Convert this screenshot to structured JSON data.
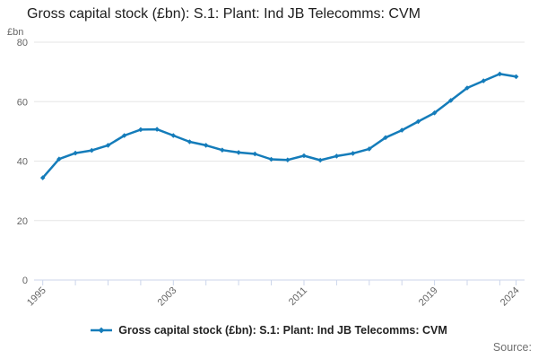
{
  "title": "Gross capital stock (£bn): S.1: Plant: Ind JB Telecomms: CVM",
  "y_axis_unit_label": "£bn",
  "legend": {
    "label": "Gross capital stock (£bn): S.1: Plant: Ind JB Telecomms: CVM"
  },
  "source_label": "Source:",
  "colors": {
    "line": "#147cba",
    "grid": "#e6e6e6",
    "axis": "#ccd6eb",
    "tick_label": "#666666",
    "title_text": "#202020",
    "legend_text": "#222222",
    "source_text": "#707070"
  },
  "chart_data": {
    "type": "line",
    "title": "Gross capital stock (£bn): S.1: Plant: Ind JB Telecomms: CVM",
    "xlabel": "",
    "ylabel": "£bn",
    "ylim": [
      0,
      80
    ],
    "yticks": [
      0,
      20,
      40,
      60,
      80
    ],
    "x": [
      1995,
      1996,
      1997,
      1998,
      1999,
      2000,
      2001,
      2002,
      2003,
      2004,
      2005,
      2006,
      2007,
      2008,
      2009,
      2010,
      2011,
      2012,
      2013,
      2014,
      2015,
      2016,
      2017,
      2018,
      2019,
      2020,
      2021,
      2022,
      2023,
      2024
    ],
    "series": [
      {
        "name": "Gross capital stock (£bn): S.1: Plant: Ind JB Telecomms: CVM",
        "values": [
          34.4,
          40.7,
          42.7,
          43.6,
          45.3,
          48.6,
          50.6,
          50.7,
          48.6,
          46.5,
          45.3,
          43.7,
          42.9,
          42.4,
          40.6,
          40.4,
          41.8,
          40.3,
          41.7,
          42.6,
          44.1,
          47.9,
          50.4,
          53.3,
          56.2,
          60.4,
          64.6,
          67,
          69.3,
          68.4
        ]
      }
    ],
    "xticks": [
      1995,
      1997,
      1999,
      2001,
      2003,
      2005,
      2007,
      2009,
      2011,
      2013,
      2015,
      2017,
      2019,
      2021,
      2023,
      2024
    ],
    "xtick_labels": [
      "1995",
      "2003",
      "2011",
      "2019",
      "2024"
    ],
    "grid": "horizontal",
    "legend_position": "bottom",
    "marker": "diamond"
  }
}
